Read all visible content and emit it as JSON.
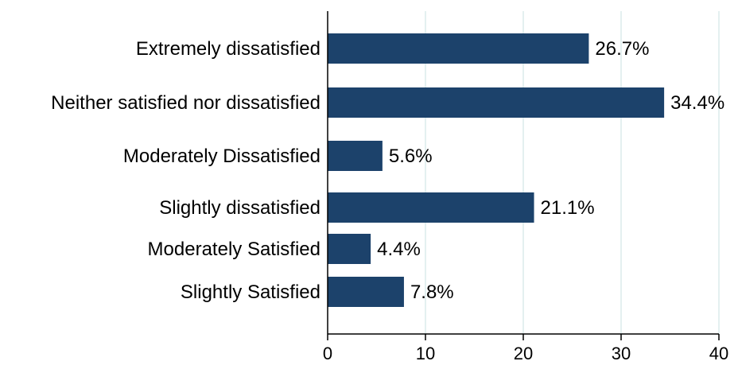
{
  "chart_data": {
    "type": "bar",
    "orientation": "horizontal",
    "title": "",
    "xlabel": "",
    "ylabel": "",
    "categories": [
      "Extremely dissatisfied",
      "Neither satisfied nor dissatisfied",
      "Moderately Dissatisfied",
      "Slightly dissatisfied",
      "Moderately Satisfied",
      "Slightly Satisfied"
    ],
    "values": [
      26.7,
      34.4,
      5.6,
      21.1,
      4.4,
      7.8
    ],
    "value_labels": [
      "26.7%",
      "34.4%",
      "5.6%",
      "21.1%",
      "4.4%",
      "7.8%"
    ],
    "xlim": [
      0,
      40
    ],
    "xticks": [
      0,
      10,
      20,
      30,
      40
    ],
    "xtick_labels": [
      "0",
      "10",
      "20",
      "30",
      "40"
    ],
    "grid": "vertical",
    "legend": "none",
    "colors": {
      "bar": "#1c426b",
      "grid": "#dcebeb",
      "axis": "#000000",
      "text": "#000000",
      "background": "#ffffff"
    }
  }
}
